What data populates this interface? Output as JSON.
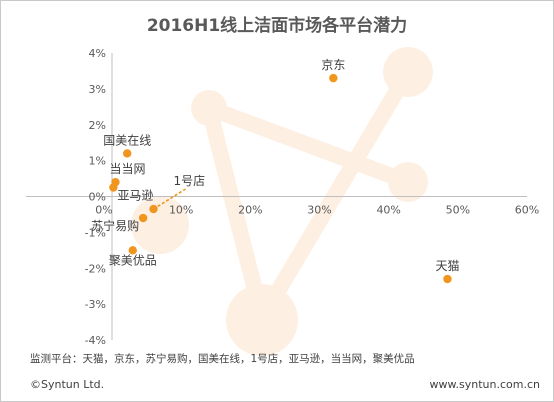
{
  "chart_data": {
    "type": "scatter",
    "title": "2016H1线上洁面市场各平台潜力",
    "xlim": [
      0,
      60
    ],
    "ylim": [
      -4,
      4
    ],
    "x_ticks": [
      "0%",
      "10%",
      "20%",
      "30%",
      "40%",
      "50%",
      "60%"
    ],
    "y_ticks": [
      "4%",
      "3%",
      "2%",
      "1%",
      "0%",
      "-1%",
      "-2%",
      "-3%",
      "-4%"
    ],
    "grid": false,
    "colors": {
      "point": "#f0961e",
      "watermark": "#fdeedf",
      "axis": "#bfbfbf"
    },
    "points": [
      {
        "label": "京东",
        "x": 32.0,
        "y": 3.3
      },
      {
        "label": "天猫",
        "x": 48.5,
        "y": -2.3
      },
      {
        "label": "国美在线",
        "x": 2.2,
        "y": 1.2
      },
      {
        "label": "当当网",
        "x": 0.5,
        "y": 0.4
      },
      {
        "label": "亚马逊",
        "x": 0.2,
        "y": 0.25
      },
      {
        "label": "苏宁易购",
        "x": 4.5,
        "y": -0.6
      },
      {
        "label": "聚美优品",
        "x": 3.0,
        "y": -1.5
      },
      {
        "label": "1号店",
        "x": 6.0,
        "y": -0.35
      }
    ]
  },
  "note": "监测平台：天猫，京东，苏宁易购，国美在线，1号店，亚马逊，当当网，聚美优品",
  "footer": {
    "left": "©Syntun Ltd.",
    "right": "www.syntun.com.cn"
  }
}
